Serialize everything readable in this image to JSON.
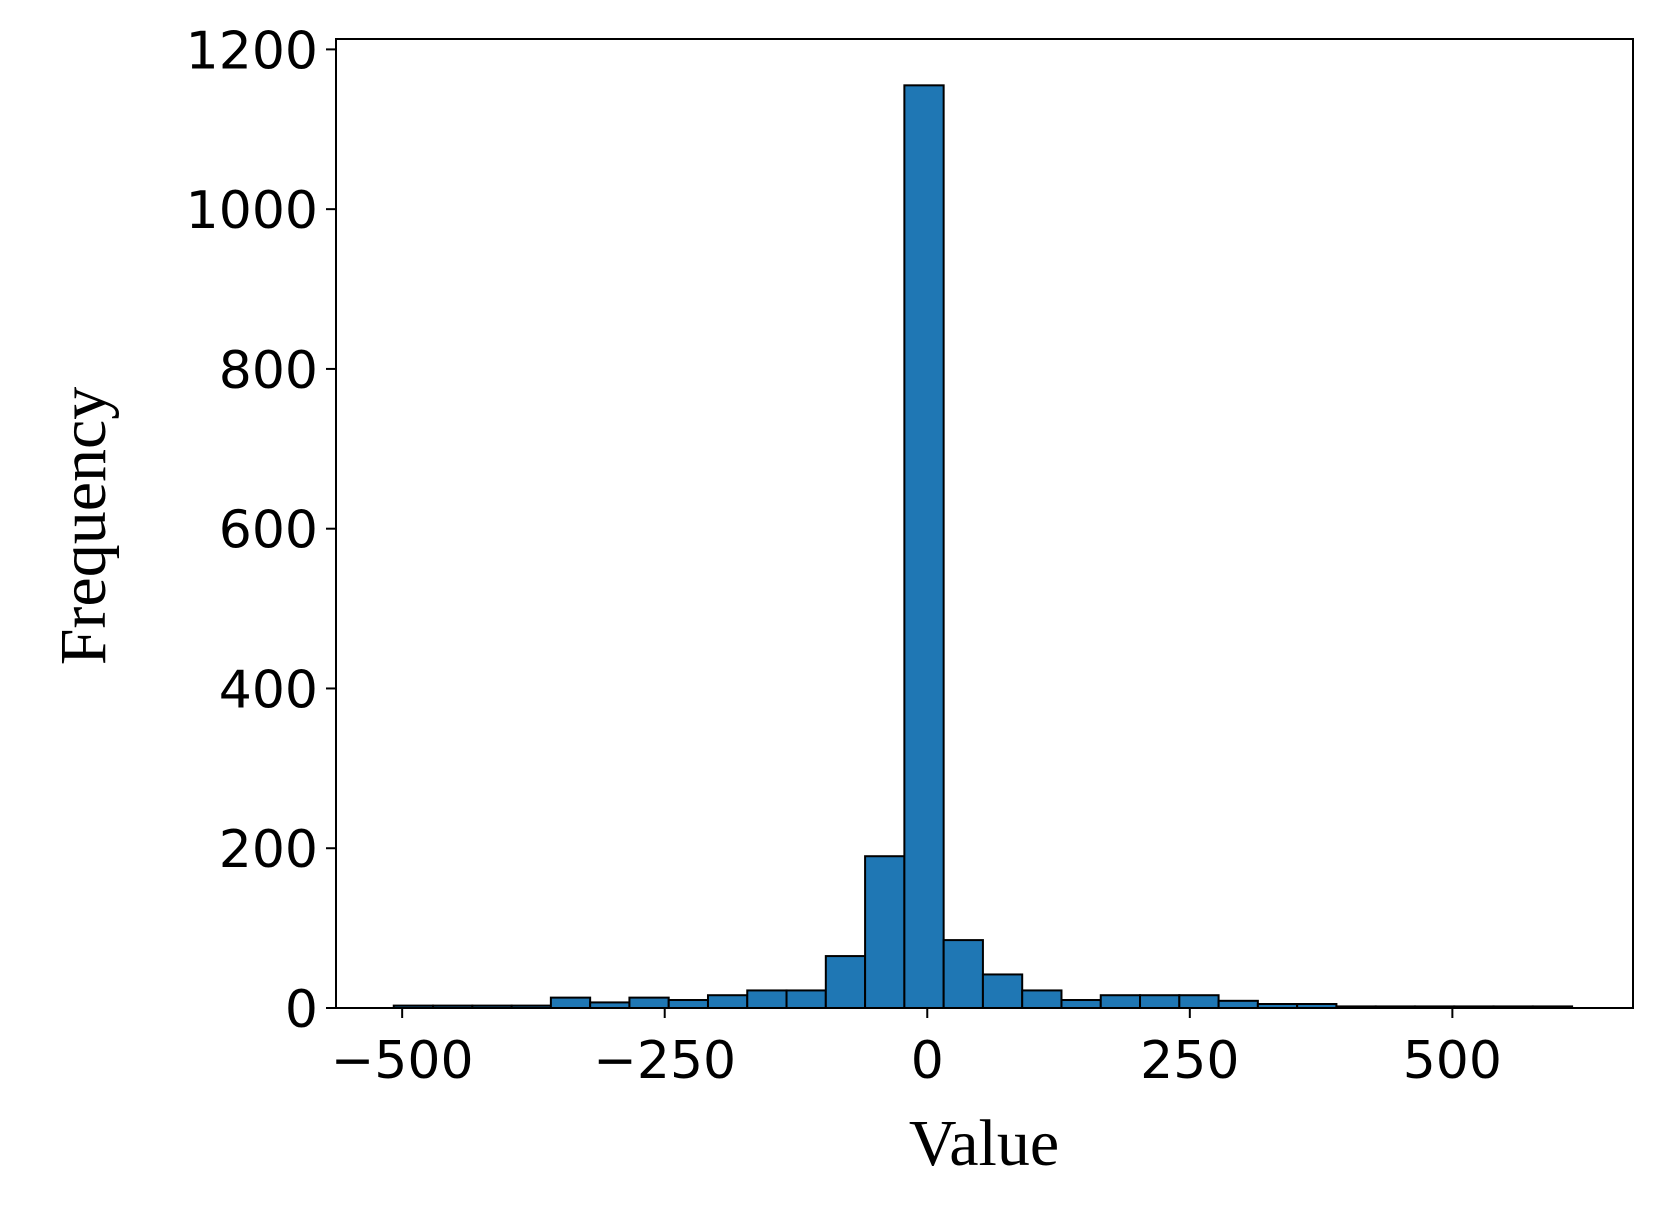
{
  "chart_data": {
    "type": "histogram",
    "x_label": "Value",
    "y_label": "Frequency",
    "bins": [
      -508,
      -470.6,
      -433.2,
      -395.8,
      -358.4,
      -321,
      -283.6,
      -246.2,
      -208.8,
      -171.4,
      -134,
      -96.6,
      -59.2,
      -21.8,
      15.6,
      53,
      90.4,
      127.8,
      165.2,
      202.6,
      240,
      277.4,
      314.8,
      352.2,
      389.6,
      427,
      464.4,
      501.8,
      539.2,
      576.6,
      614
    ],
    "values": [
      3,
      3,
      3,
      3,
      13,
      7,
      13,
      10,
      16,
      22,
      22,
      65,
      190,
      1155,
      85,
      42,
      22,
      10,
      16,
      16,
      16,
      9,
      5,
      5,
      2,
      2,
      2,
      2,
      2,
      2
    ],
    "color": "#1f77b4",
    "xlim": [
      -563,
      672
    ],
    "ylim": [
      0,
      1213
    ],
    "xticks": [
      {
        "value": -500,
        "label": "−500"
      },
      {
        "value": -250,
        "label": "−250"
      },
      0,
      250,
      500
    ],
    "yticks": [
      0,
      200,
      400,
      600,
      800,
      1000,
      1200
    ]
  }
}
